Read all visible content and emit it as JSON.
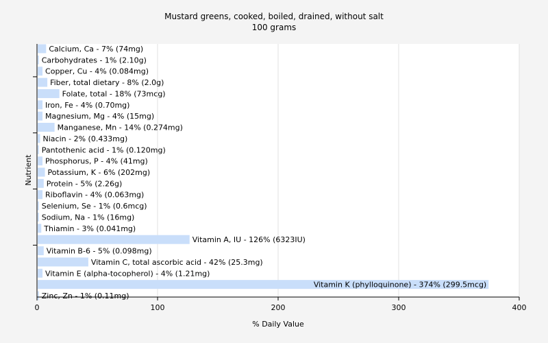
{
  "chart_data": {
    "type": "bar",
    "orientation": "horizontal",
    "title": "Mustard greens, cooked, boiled, drained, without salt",
    "subtitle": "100 grams",
    "xlabel": "% Daily Value",
    "ylabel": "Nutrient",
    "xlim": [
      0,
      400
    ],
    "xticks": [
      0,
      100,
      200,
      300,
      400
    ],
    "grid": true,
    "bar_color": "#c9defa",
    "grid_color": "#e2e2e2",
    "categories": [
      "Calcium, Ca",
      "Carbohydrates",
      "Copper, Cu",
      "Fiber, total dietary",
      "Folate, total",
      "Iron, Fe",
      "Magnesium, Mg",
      "Manganese, Mn",
      "Niacin",
      "Pantothenic acid",
      "Phosphorus, P",
      "Potassium, K",
      "Protein",
      "Riboflavin",
      "Selenium, Se",
      "Sodium, Na",
      "Thiamin",
      "Vitamin A, IU",
      "Vitamin B-6",
      "Vitamin C, total ascorbic acid",
      "Vitamin E (alpha-tocopherol)",
      "Vitamin K (phylloquinone)",
      "Zinc, Zn"
    ],
    "values": [
      7,
      1,
      4,
      8,
      18,
      4,
      4,
      14,
      2,
      1,
      4,
      6,
      5,
      4,
      1,
      1,
      3,
      126,
      5,
      42,
      4,
      374,
      1
    ],
    "labels": [
      "Calcium, Ca - 7% (74mg)",
      "Carbohydrates - 1% (2.10g)",
      "Copper, Cu - 4% (0.084mg)",
      "Fiber, total dietary - 8% (2.0g)",
      "Folate, total - 18% (73mcg)",
      "Iron, Fe - 4% (0.70mg)",
      "Magnesium, Mg - 4% (15mg)",
      "Manganese, Mn - 14% (0.274mg)",
      "Niacin - 2% (0.433mg)",
      "Pantothenic acid - 1% (0.120mg)",
      "Phosphorus, P - 4% (41mg)",
      "Potassium, K - 6% (202mg)",
      "Protein - 5% (2.26g)",
      "Riboflavin - 4% (0.063mg)",
      "Selenium, Se - 1% (0.6mcg)",
      "Sodium, Na - 1% (16mg)",
      "Thiamin - 3% (0.041mg)",
      "Vitamin A, IU - 126% (6323IU)",
      "Vitamin B-6 - 5% (0.098mg)",
      "Vitamin C, total ascorbic acid - 42% (25.3mg)",
      "Vitamin E (alpha-tocopherol) - 4% (1.21mg)",
      "Vitamin K (phylloquinone) - 374% (299.5mcg)",
      "Zinc, Zn - 1% (0.11mg)"
    ]
  }
}
